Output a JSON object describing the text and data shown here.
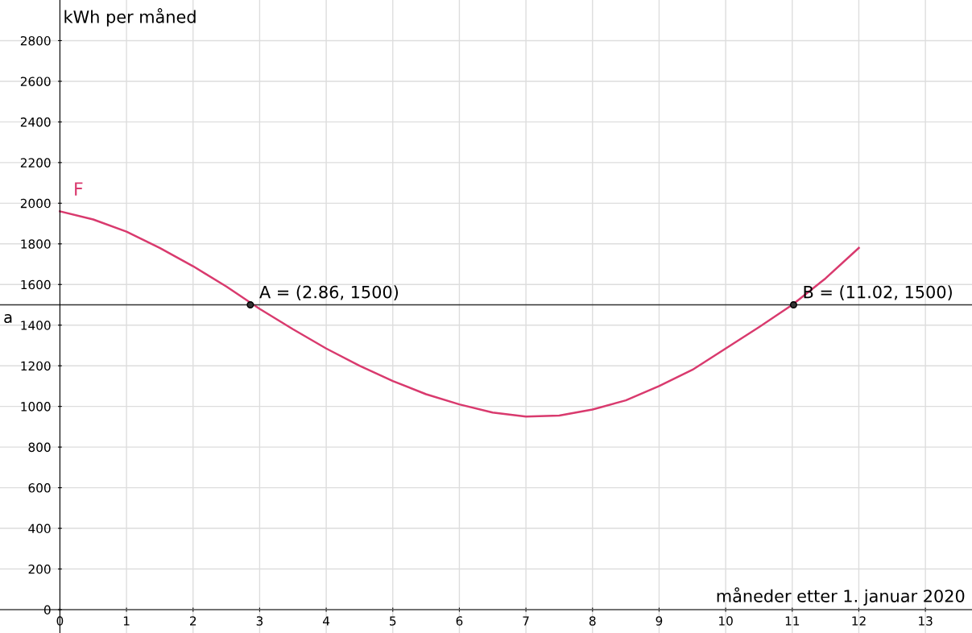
{
  "chart_data": {
    "type": "line",
    "xlabel": "måneder etter 1. januar 2020",
    "ylabel": "kWh per måned",
    "series": [
      {
        "name": "F",
        "color": "#d93a6e",
        "x": [
          0,
          0.5,
          1,
          1.5,
          2,
          2.5,
          3,
          3.5,
          4,
          4.5,
          5,
          5.5,
          6,
          6.5,
          7,
          7.5,
          8,
          8.5,
          9,
          9.5,
          10,
          10.5,
          11,
          11.5,
          12
        ],
        "values": [
          1960,
          1920,
          1860,
          1780,
          1690,
          1590,
          1480,
          1380,
          1285,
          1200,
          1125,
          1060,
          1010,
          970,
          950,
          955,
          985,
          1030,
          1100,
          1180,
          1285,
          1390,
          1500,
          1630,
          1780
        ]
      },
      {
        "type": "scatter",
        "color": "#333333",
        "x": [
          2.86,
          11.02
        ],
        "values": [
          1500,
          1500
        ]
      }
    ],
    "ref_lines": [
      {
        "axis": "y",
        "value": 1500,
        "label": "a",
        "color": "#333333"
      }
    ],
    "annotations": [
      {
        "text": "A = (2.86, 1500)",
        "x": 2.86,
        "y": 1500
      },
      {
        "text": "B = (11.02, 1500)",
        "x": 11.02,
        "y": 1500
      }
    ],
    "xlim": [
      -0.9,
      13.7
    ],
    "ylim": [
      -115,
      3000
    ],
    "xticks": [
      0,
      1,
      2,
      3,
      4,
      5,
      6,
      7,
      8,
      9,
      10,
      11,
      12,
      13
    ],
    "yticks": [
      0,
      200,
      400,
      600,
      800,
      1000,
      1200,
      1400,
      1600,
      1800,
      2000,
      2200,
      2400,
      2600,
      2800
    ],
    "grid": true,
    "marker": "none",
    "line_style": "solid"
  }
}
